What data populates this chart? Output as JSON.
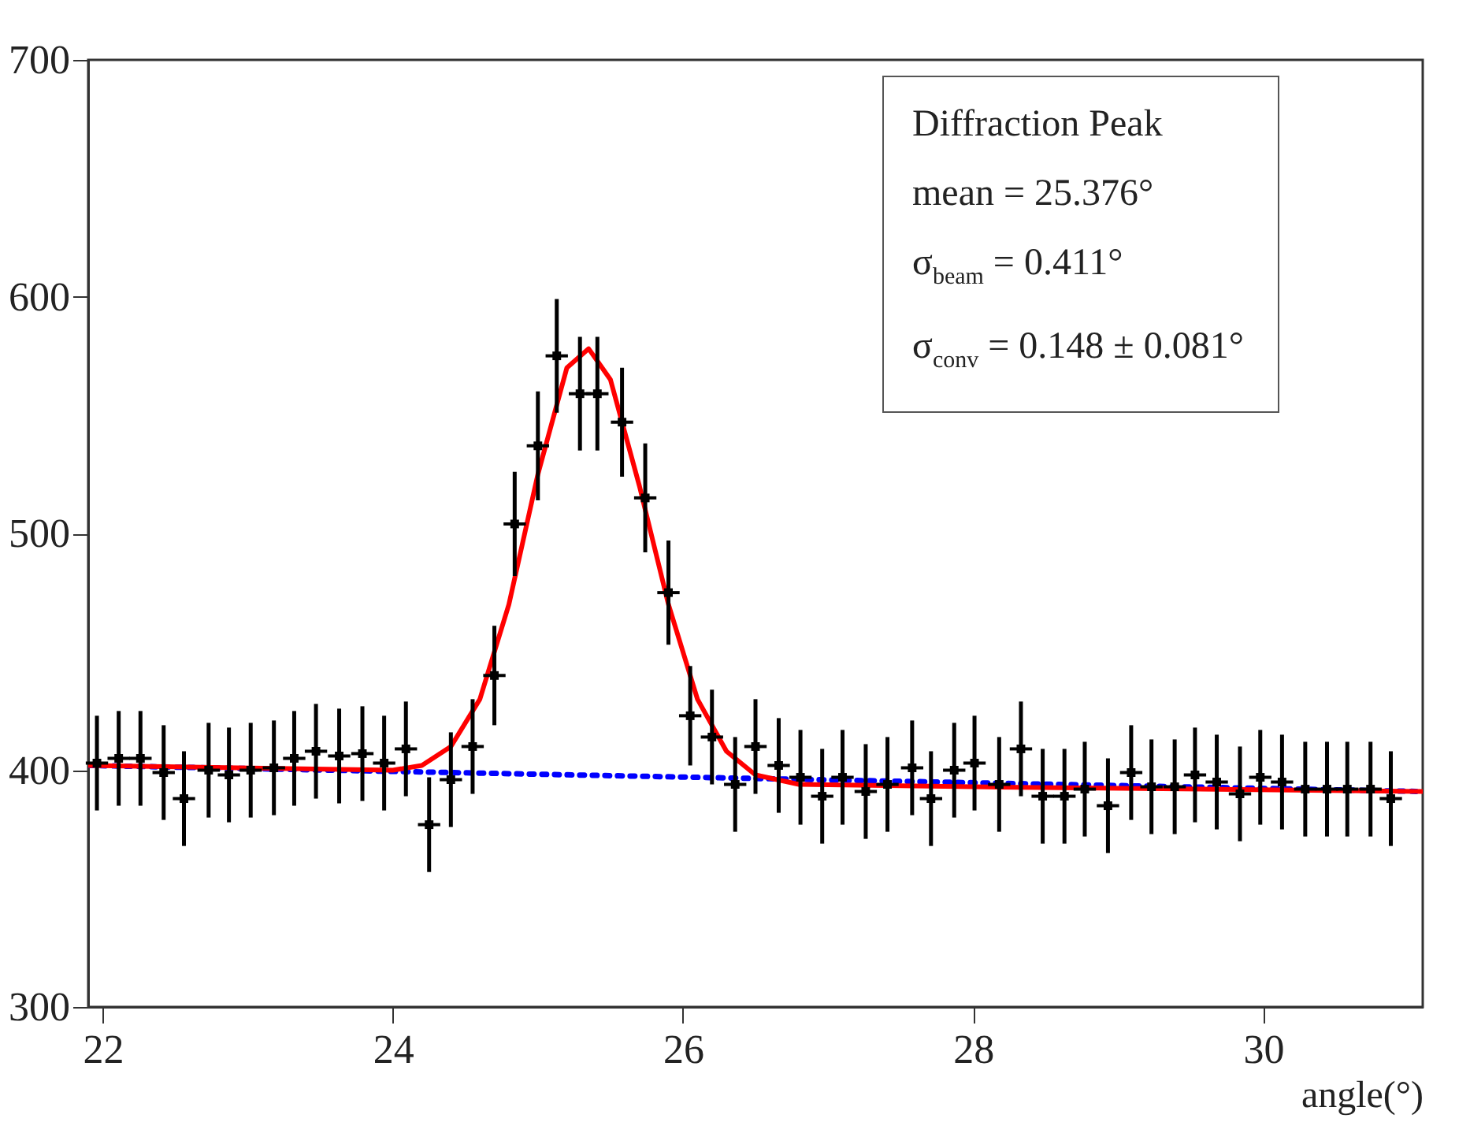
{
  "chart_data": {
    "type": "scatter",
    "xlabel": "angle(°)",
    "xlim": [
      21.9,
      31.1
    ],
    "xticks": [
      22,
      24,
      26,
      28,
      30
    ],
    "ylim": [
      300,
      700
    ],
    "yticks": [
      300,
      400,
      500,
      600,
      700
    ],
    "annotations": [
      "Diffraction Peak",
      "mean = 25.376°",
      "σ$_{beam}$ =  0.411°",
      "σ$_{conv}$ = 0.148 ± 0.081°"
    ],
    "series": [
      {
        "color": "#000000",
        "marker": "square",
        "x": [
          21.96,
          22.11,
          22.26,
          22.42,
          22.56,
          22.73,
          22.87,
          23.02,
          23.18,
          23.32,
          23.47,
          23.63,
          23.79,
          23.94,
          24.09,
          24.25,
          24.4,
          24.55,
          24.7,
          24.84,
          25.0,
          25.13,
          25.29,
          25.41,
          25.58,
          25.74,
          25.9,
          26.05,
          26.2,
          26.36,
          26.5,
          26.66,
          26.81,
          26.96,
          27.1,
          27.26,
          27.41,
          27.58,
          27.71,
          27.87,
          28.01,
          28.18,
          28.33,
          28.48,
          28.63,
          28.77,
          28.93,
          29.09,
          29.23,
          29.39,
          29.53,
          29.68,
          29.84,
          29.98,
          30.13,
          30.29,
          30.44,
          30.58,
          30.74,
          30.88
        ],
        "values": [
          403,
          405,
          405,
          399,
          388,
          400,
          398,
          400,
          401,
          405,
          408,
          406,
          407,
          403,
          409,
          377,
          396,
          410,
          440,
          504,
          537,
          575,
          559,
          559,
          547,
          515,
          475,
          423,
          414,
          394,
          410,
          402,
          397,
          389,
          397,
          391,
          394,
          401,
          388,
          400,
          403,
          394,
          409,
          389,
          389,
          392,
          385,
          399,
          393,
          393,
          398,
          395,
          390,
          397,
          395,
          392,
          392,
          392,
          392,
          388
        ],
        "errors": [
          20,
          20,
          20,
          20,
          20,
          20,
          20,
          20,
          20,
          20,
          20,
          20,
          20,
          20,
          20,
          20,
          20,
          20,
          21,
          22,
          23,
          24,
          24,
          24,
          23,
          23,
          22,
          21,
          20,
          20,
          20,
          20,
          20,
          20,
          20,
          20,
          20,
          20,
          20,
          20,
          20,
          20,
          20,
          20,
          20,
          20,
          20,
          20,
          20,
          20,
          20,
          20,
          20,
          20,
          20,
          20,
          20,
          20,
          20,
          20
        ],
        "xerrors": [
          0.077,
          0.077,
          0.077,
          0.077,
          0.077,
          0.077,
          0.077,
          0.077,
          0.077,
          0.077,
          0.077,
          0.077,
          0.077,
          0.077,
          0.077,
          0.077,
          0.077,
          0.077,
          0.077,
          0.077,
          0.077,
          0.077,
          0.077,
          0.077,
          0.077,
          0.077,
          0.077,
          0.077,
          0.077,
          0.077,
          0.077,
          0.077,
          0.077,
          0.077,
          0.077,
          0.077,
          0.077,
          0.077,
          0.077,
          0.077,
          0.077,
          0.077,
          0.077,
          0.077,
          0.077,
          0.077,
          0.077,
          0.077,
          0.077,
          0.077,
          0.077,
          0.077,
          0.077,
          0.077,
          0.077,
          0.077,
          0.077,
          0.077,
          0.077,
          0.077
        ]
      },
      {
        "type": "line",
        "color": "#0000ff",
        "line_style": "dotted",
        "x": [
          21.9,
          31.1
        ],
        "values": [
          402,
          391
        ]
      },
      {
        "type": "line",
        "color": "#ff0000",
        "line_style": "solid",
        "x": [
          21.9,
          24.0,
          24.2,
          24.4,
          24.6,
          24.8,
          25.0,
          25.2,
          25.35,
          25.5,
          25.7,
          25.9,
          26.1,
          26.3,
          26.5,
          26.8,
          28.0,
          31.1
        ],
        "values": [
          402,
          400,
          402,
          410,
          430,
          470,
          525,
          570,
          578,
          565,
          520,
          470,
          430,
          408,
          398,
          394,
          393,
          391
        ]
      }
    ]
  }
}
